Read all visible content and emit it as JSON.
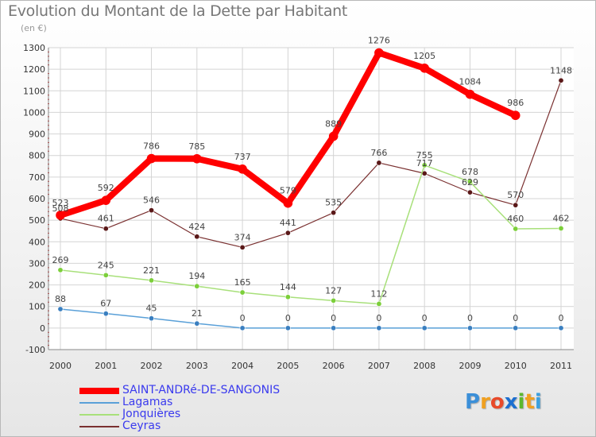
{
  "title": "Evolution du Montant de la Dette par Habitant",
  "subtitle": "(en €)",
  "logo": {
    "text": "Proxiti",
    "letters": [
      "P",
      "r",
      "o",
      "x",
      "i",
      "t",
      "i"
    ],
    "colors": [
      "#3b8fd8",
      "#f0a020",
      "#e84a2a",
      "#1c6fd0",
      "#5cb82e",
      "#f0a020",
      "#3ba0e0"
    ]
  },
  "chart_data": {
    "type": "line",
    "title": "Evolution du Montant de la Dette par Habitant",
    "ylabel": "(en €)",
    "xlabel": "",
    "x": [
      "2000",
      "2001",
      "2002",
      "2003",
      "2004",
      "2005",
      "2006",
      "2007",
      "2008",
      "2009",
      "2010",
      "2011"
    ],
    "ylim": [
      -100,
      1300
    ],
    "yticks": [
      -100,
      0,
      100,
      200,
      300,
      400,
      500,
      600,
      700,
      800,
      900,
      1000,
      1100,
      1200,
      1300
    ],
    "grid": true,
    "legend_position": "bottom-left",
    "series": [
      {
        "name": "SAINT-ANDRé-DE-SANGONIS",
        "color": "#ff0000",
        "marker": "#ff0000",
        "width": 8,
        "values": [
          523,
          592,
          786,
          785,
          737,
          579,
          889,
          1276,
          1205,
          1084,
          986,
          null
        ]
      },
      {
        "name": "Lagamas",
        "color": "#5aa0d8",
        "marker": "#3a7fc0",
        "width": 1.5,
        "values": [
          88,
          67,
          45,
          21,
          0,
          0,
          0,
          0,
          0,
          0,
          0,
          0
        ]
      },
      {
        "name": "Jonquières",
        "color": "#a8e07a",
        "marker": "#7ccf3a",
        "width": 1.5,
        "values": [
          269,
          245,
          221,
          194,
          165,
          144,
          127,
          112,
          755,
          678,
          460,
          462
        ]
      },
      {
        "name": "Ceyras",
        "color": "#7a3030",
        "marker": "#5a1818",
        "width": 1.2,
        "values": [
          508,
          461,
          546,
          424,
          374,
          441,
          535,
          766,
          717,
          629,
          570,
          1148
        ]
      }
    ]
  }
}
